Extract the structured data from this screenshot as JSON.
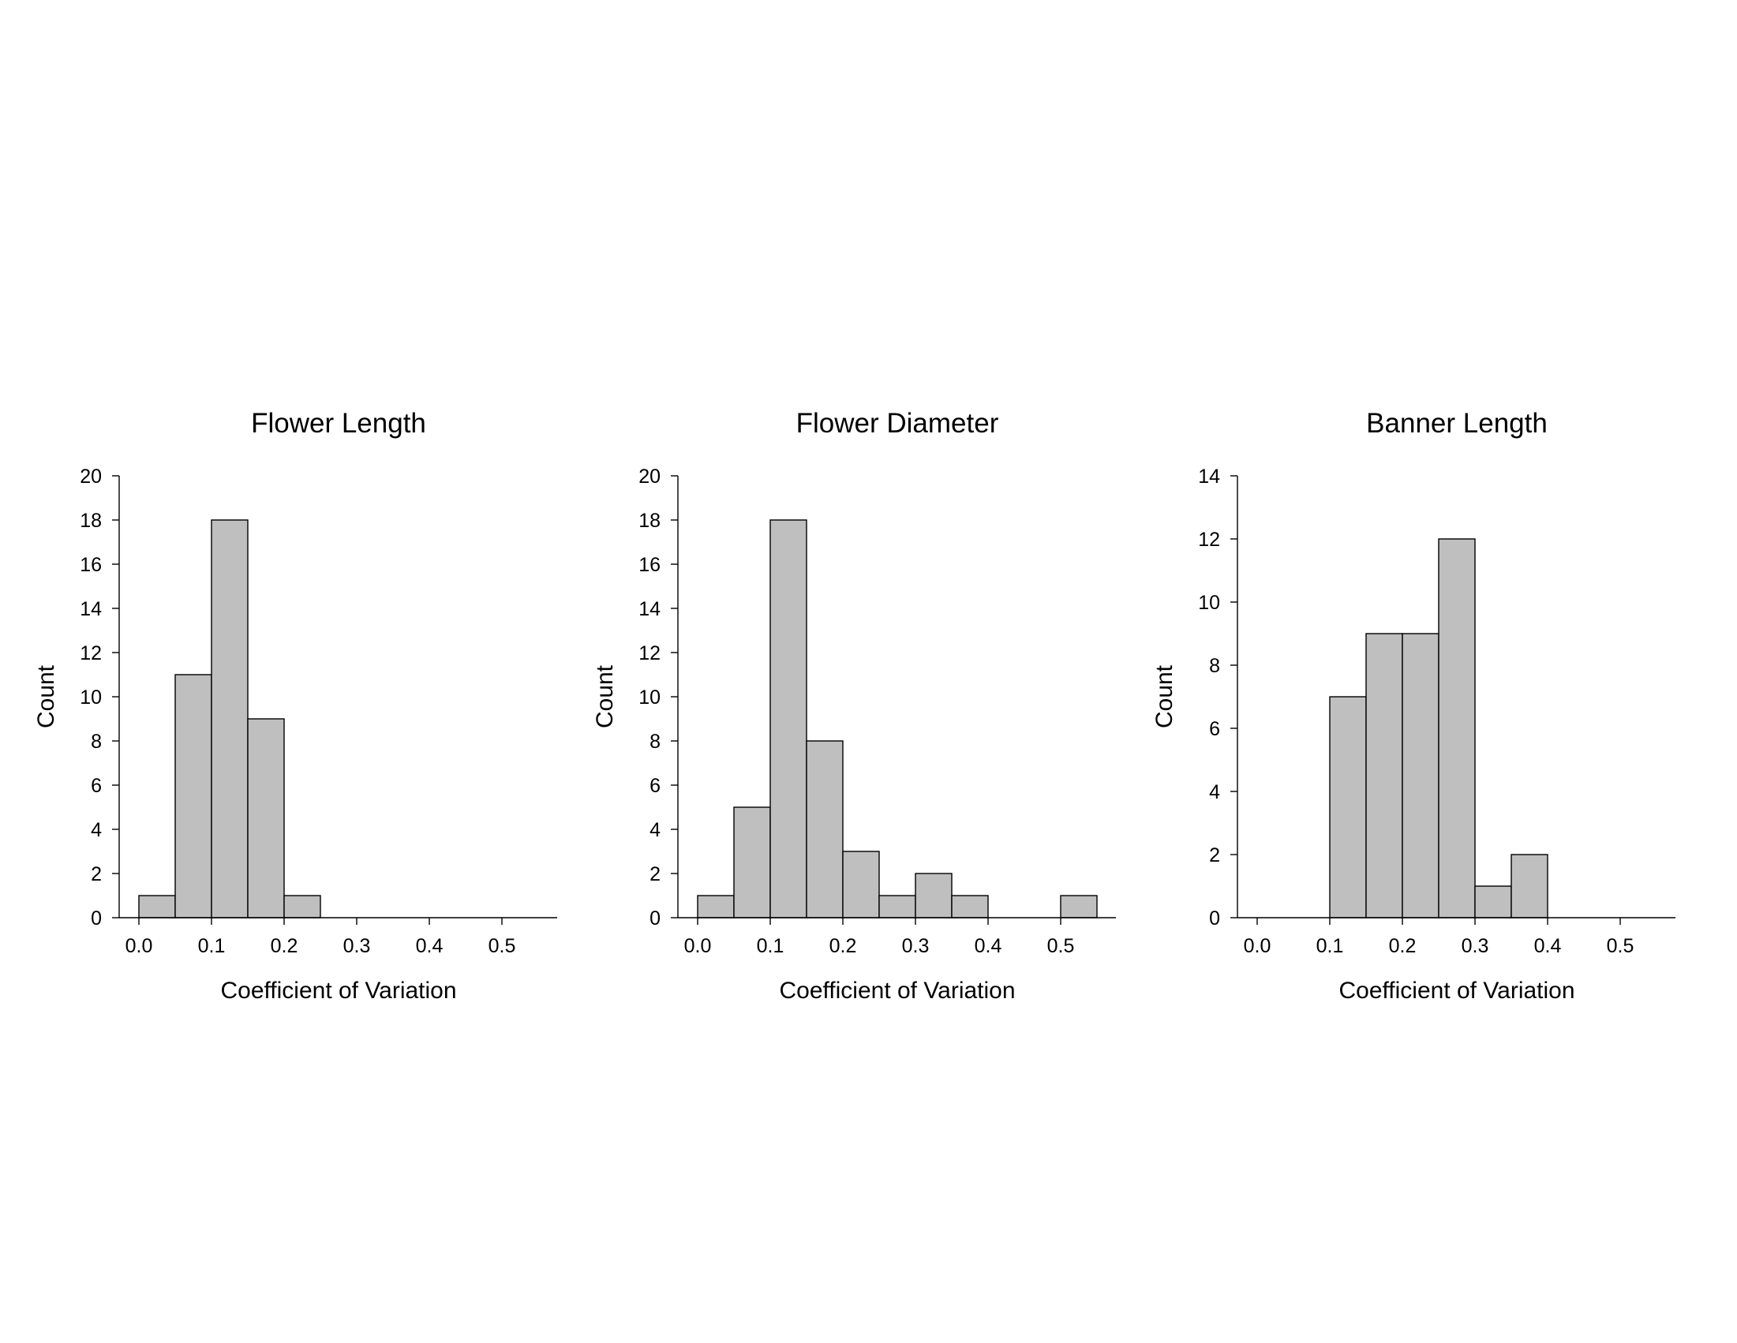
{
  "chart_data": [
    {
      "type": "bar",
      "title": "Flower Length",
      "xlabel": "Coefficient of Variation",
      "ylabel": "Count",
      "bin_width": 0.05,
      "bins": [
        0.0,
        0.05,
        0.1,
        0.15,
        0.2
      ],
      "values": [
        1,
        11,
        18,
        9,
        1
      ],
      "xticks": [
        "0.0",
        "0.1",
        "0.2",
        "0.3",
        "0.4",
        "0.5"
      ],
      "yticks": [
        "0",
        "2",
        "4",
        "6",
        "8",
        "10",
        "12",
        "14",
        "16",
        "18",
        "20"
      ],
      "xlim": [
        0,
        0.55
      ],
      "ylim": [
        0,
        20
      ],
      "grid": false,
      "bar_color": "#bfbfbf"
    },
    {
      "type": "bar",
      "title": "Flower Diameter",
      "xlabel": "Coefficient of Variation",
      "ylabel": "Count",
      "bin_width": 0.05,
      "bins": [
        0.0,
        0.05,
        0.1,
        0.15,
        0.2,
        0.25,
        0.3,
        0.35,
        0.5
      ],
      "values": [
        1,
        5,
        18,
        8,
        3,
        1,
        2,
        1,
        1
      ],
      "xticks": [
        "0.0",
        "0.1",
        "0.2",
        "0.3",
        "0.4",
        "0.5"
      ],
      "yticks": [
        "0",
        "2",
        "4",
        "6",
        "8",
        "10",
        "12",
        "14",
        "16",
        "18",
        "20"
      ],
      "xlim": [
        0,
        0.55
      ],
      "ylim": [
        0,
        20
      ],
      "grid": false,
      "bar_color": "#bfbfbf"
    },
    {
      "type": "bar",
      "title": "Banner Length",
      "xlabel": "Coefficient of Variation",
      "ylabel": "Count",
      "bin_width": 0.05,
      "bins": [
        0.1,
        0.15,
        0.2,
        0.25,
        0.3,
        0.35
      ],
      "values": [
        7,
        9,
        9,
        12,
        1,
        2
      ],
      "xticks": [
        "0.0",
        "0.1",
        "0.2",
        "0.3",
        "0.4",
        "0.5"
      ],
      "yticks": [
        "0",
        "2",
        "4",
        "6",
        "8",
        "10",
        "12",
        "14"
      ],
      "xlim": [
        0,
        0.55
      ],
      "ylim": [
        0,
        14
      ],
      "grid": false,
      "bar_color": "#bfbfbf"
    }
  ]
}
